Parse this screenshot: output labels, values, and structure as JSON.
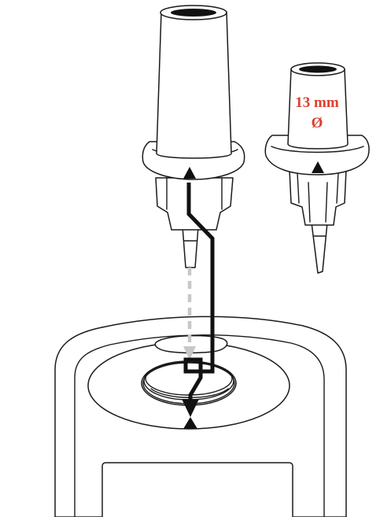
{
  "labels": {
    "adapter_line1": "13 mm",
    "adapter_line2": "Ø"
  },
  "colors": {
    "outline": "#1a1a1a",
    "label_red": "#d9412e",
    "path_black": "#111111",
    "path_gray": "#c8c8c8"
  },
  "icons": {
    "alignment_mark": "triangle-up-icon",
    "insert_arrow": "arrow-down-icon"
  }
}
